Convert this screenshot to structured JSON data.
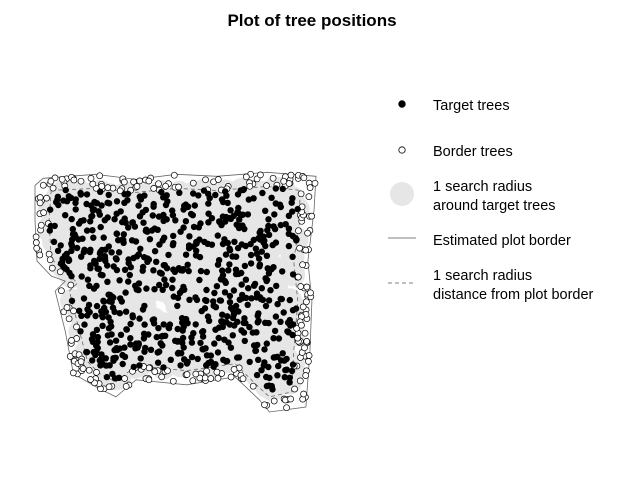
{
  "chart_data": {
    "type": "scatter",
    "title": "Plot of tree positions",
    "xlabel": "",
    "ylabel": "",
    "axes_visible": false,
    "grid": false,
    "legend_position": "right",
    "colors": {
      "target_tree": "#000000",
      "border_tree": "#ffffff",
      "search_area": "#e6e6e6",
      "plot_border": "#666666",
      "inner_border": "#666666"
    },
    "xlim": [
      0,
      280
    ],
    "ylim": [
      0,
      280
    ],
    "plot_border_polygon": [
      [
        0,
        225
      ],
      [
        8,
        232
      ],
      [
        60,
        236
      ],
      [
        100,
        231
      ],
      [
        140,
        236
      ],
      [
        180,
        234
      ],
      [
        230,
        238
      ],
      [
        278,
        234
      ],
      [
        276,
        200
      ],
      [
        270,
        150
      ],
      [
        274,
        110
      ],
      [
        272,
        60
      ],
      [
        268,
        5
      ],
      [
        232,
        0
      ],
      [
        222,
        12
      ],
      [
        198,
        35
      ],
      [
        150,
        27
      ],
      [
        100,
        32
      ],
      [
        80,
        15
      ],
      [
        62,
        24
      ],
      [
        38,
        38
      ],
      [
        30,
        80
      ],
      [
        20,
        120
      ],
      [
        30,
        130
      ],
      [
        16,
        135
      ],
      [
        2,
        150
      ],
      [
        0,
        190
      ]
    ],
    "inner_border_polygon": [
      [
        16,
        220
      ],
      [
        60,
        222
      ],
      [
        100,
        218
      ],
      [
        140,
        222
      ],
      [
        180,
        220
      ],
      [
        230,
        224
      ],
      [
        262,
        220
      ],
      [
        262,
        190
      ],
      [
        256,
        150
      ],
      [
        260,
        110
      ],
      [
        256,
        60
      ],
      [
        254,
        20
      ],
      [
        232,
        15
      ],
      [
        220,
        26
      ],
      [
        198,
        48
      ],
      [
        150,
        41
      ],
      [
        100,
        46
      ],
      [
        80,
        30
      ],
      [
        64,
        38
      ],
      [
        52,
        50
      ],
      [
        44,
        80
      ],
      [
        34,
        120
      ],
      [
        42,
        128
      ],
      [
        30,
        140
      ],
      [
        16,
        152
      ],
      [
        14,
        190
      ]
    ],
    "series": [
      {
        "name": "Target trees",
        "count": 700
      },
      {
        "name": "Border trees",
        "count": 240
      }
    ],
    "legend": {
      "entries": [
        {
          "label": "Target trees",
          "symbol": "filled-circle"
        },
        {
          "label": "Border trees",
          "symbol": "open-circle"
        },
        {
          "label": "1 search radius\naround target trees",
          "symbol": "grey-disc"
        },
        {
          "label": "Estimated plot border",
          "symbol": "solid-line"
        },
        {
          "label": "1 search radius\ndistance from plot border",
          "symbol": "dashed-line"
        }
      ]
    }
  }
}
